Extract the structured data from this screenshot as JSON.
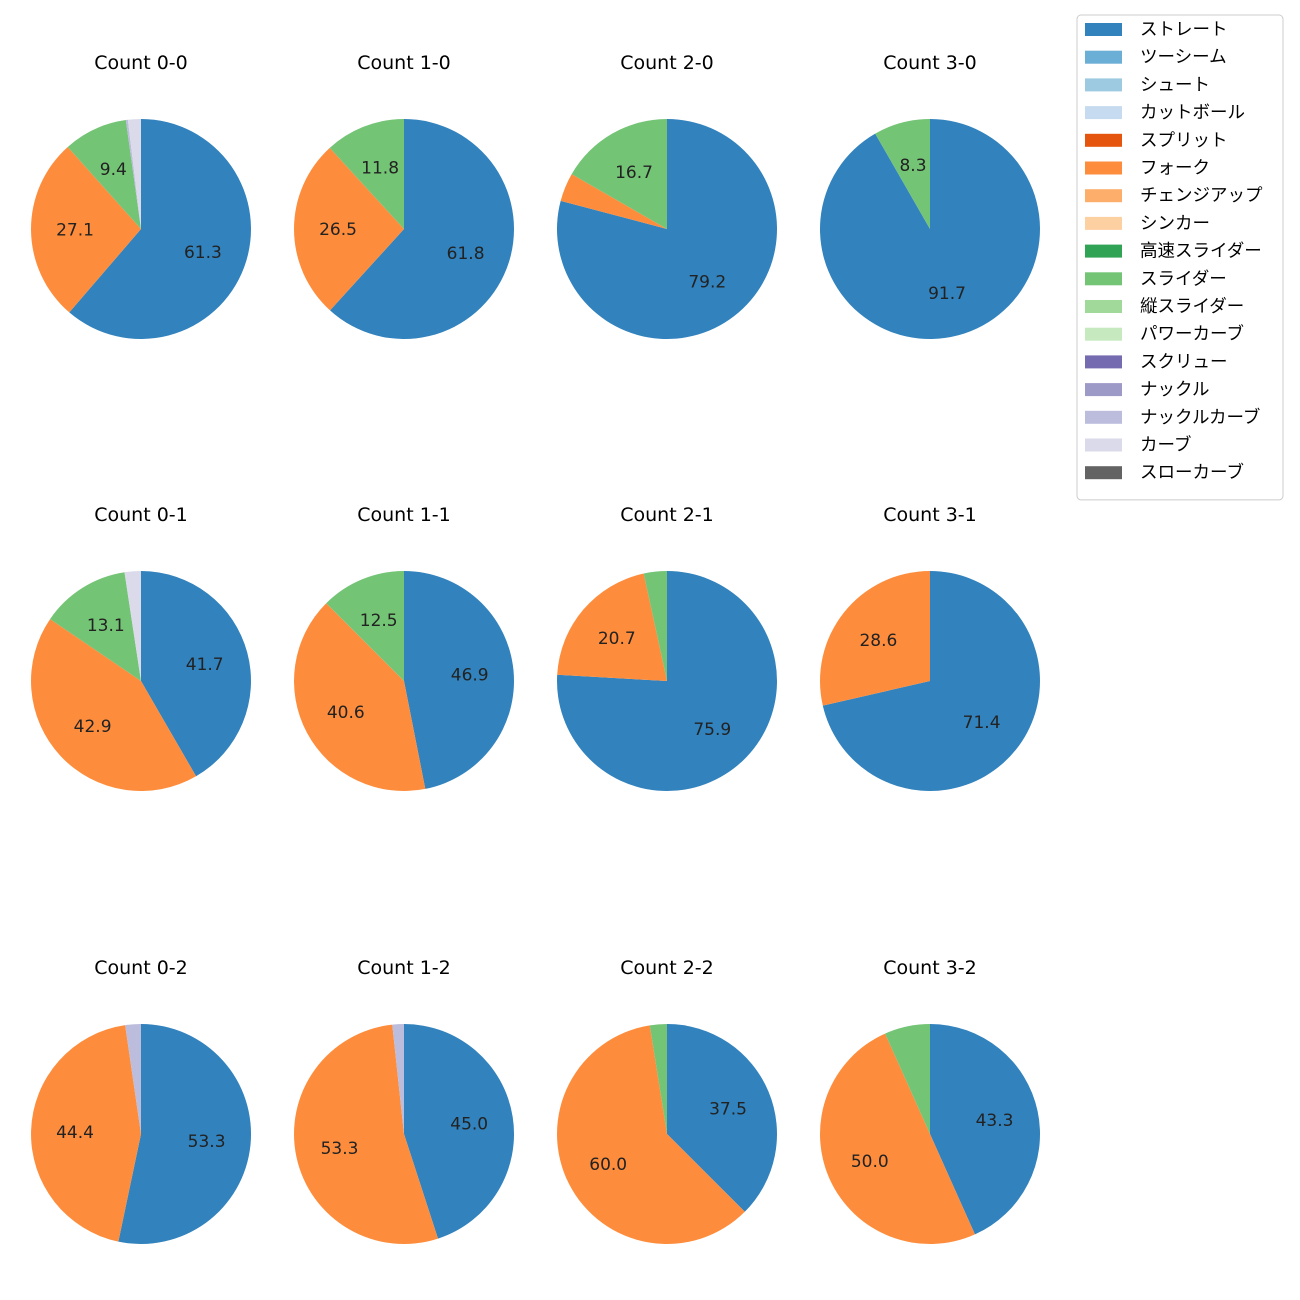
{
  "chart_data": {
    "type": "pie",
    "legend": {
      "placement": "top-right",
      "entries": [
        {
          "name": "ストレート",
          "color": "#3182bd"
        },
        {
          "name": "ツーシーム",
          "color": "#6baed6"
        },
        {
          "name": "シュート",
          "color": "#9ecae1"
        },
        {
          "name": "カットボール",
          "color": "#c6dbef"
        },
        {
          "name": "スプリット",
          "color": "#e6550d"
        },
        {
          "name": "フォーク",
          "color": "#fd8d3c"
        },
        {
          "name": "チェンジアップ",
          "color": "#fdae6b"
        },
        {
          "name": "シンカー",
          "color": "#fdd0a2"
        },
        {
          "name": "高速スライダー",
          "color": "#31a354"
        },
        {
          "name": "スライダー",
          "color": "#74c476"
        },
        {
          "name": "縦スライダー",
          "color": "#a1d99b"
        },
        {
          "name": "パワーカーブ",
          "color": "#c7e9c0"
        },
        {
          "name": "スクリュー",
          "color": "#756bb1"
        },
        {
          "name": "ナックル",
          "color": "#9e9ac8"
        },
        {
          "name": "ナックルカーブ",
          "color": "#bcbddc"
        },
        {
          "name": "カーブ",
          "color": "#dadaeb"
        },
        {
          "name": "スローカーブ",
          "color": "#636363"
        }
      ]
    },
    "pies": [
      {
        "title": "Count 0-0",
        "slices": [
          {
            "name": "ストレート",
            "value": 61.3,
            "label": "61.3"
          },
          {
            "name": "フォーク",
            "value": 27.1,
            "label": "27.1"
          },
          {
            "name": "スライダー",
            "value": 9.4,
            "label": "9.4"
          },
          {
            "name": "ナックルカーブ",
            "value": 0.3,
            "label": ""
          },
          {
            "name": "カーブ",
            "value": 1.9,
            "label": ""
          }
        ]
      },
      {
        "title": "Count 1-0",
        "slices": [
          {
            "name": "ストレート",
            "value": 61.8,
            "label": "61.8"
          },
          {
            "name": "フォーク",
            "value": 26.5,
            "label": "26.5"
          },
          {
            "name": "スライダー",
            "value": 11.8,
            "label": "11.8"
          }
        ]
      },
      {
        "title": "Count 2-0",
        "slices": [
          {
            "name": "ストレート",
            "value": 79.2,
            "label": "79.2"
          },
          {
            "name": "フォーク",
            "value": 4.2,
            "label": ""
          },
          {
            "name": "スライダー",
            "value": 16.7,
            "label": "16.7"
          }
        ]
      },
      {
        "title": "Count 3-0",
        "slices": [
          {
            "name": "ストレート",
            "value": 91.7,
            "label": "91.7"
          },
          {
            "name": "スライダー",
            "value": 8.3,
            "label": "8.3"
          }
        ]
      },
      {
        "title": "Count 0-1",
        "slices": [
          {
            "name": "ストレート",
            "value": 41.7,
            "label": "41.7"
          },
          {
            "name": "フォーク",
            "value": 42.9,
            "label": "42.9"
          },
          {
            "name": "スライダー",
            "value": 13.1,
            "label": "13.1"
          },
          {
            "name": "カーブ",
            "value": 2.4,
            "label": ""
          }
        ]
      },
      {
        "title": "Count 1-1",
        "slices": [
          {
            "name": "ストレート",
            "value": 46.9,
            "label": "46.9"
          },
          {
            "name": "フォーク",
            "value": 40.6,
            "label": "40.6"
          },
          {
            "name": "スライダー",
            "value": 12.5,
            "label": "12.5"
          }
        ]
      },
      {
        "title": "Count 2-1",
        "slices": [
          {
            "name": "ストレート",
            "value": 75.9,
            "label": "75.9"
          },
          {
            "name": "フォーク",
            "value": 20.7,
            "label": "20.7"
          },
          {
            "name": "スライダー",
            "value": 3.4,
            "label": ""
          }
        ]
      },
      {
        "title": "Count 3-1",
        "slices": [
          {
            "name": "ストレート",
            "value": 71.4,
            "label": "71.4"
          },
          {
            "name": "フォーク",
            "value": 28.6,
            "label": "28.6"
          }
        ]
      },
      {
        "title": "Count 0-2",
        "slices": [
          {
            "name": "ストレート",
            "value": 53.3,
            "label": "53.3"
          },
          {
            "name": "フォーク",
            "value": 44.4,
            "label": "44.4"
          },
          {
            "name": "ナックルカーブ",
            "value": 2.3,
            "label": ""
          }
        ]
      },
      {
        "title": "Count 1-2",
        "slices": [
          {
            "name": "ストレート",
            "value": 45.0,
            "label": "45.0"
          },
          {
            "name": "フォーク",
            "value": 53.3,
            "label": "53.3"
          },
          {
            "name": "ナックルカーブ",
            "value": 1.7,
            "label": ""
          }
        ]
      },
      {
        "title": "Count 2-2",
        "slices": [
          {
            "name": "ストレート",
            "value": 37.5,
            "label": "37.5"
          },
          {
            "name": "フォーク",
            "value": 60.0,
            "label": "60.0"
          },
          {
            "name": "スライダー",
            "value": 2.5,
            "label": ""
          }
        ]
      },
      {
        "title": "Count 3-2",
        "slices": [
          {
            "name": "ストレート",
            "value": 43.3,
            "label": "43.3"
          },
          {
            "name": "フォーク",
            "value": 50.0,
            "label": "50.0"
          },
          {
            "name": "スライダー",
            "value": 6.7,
            "label": ""
          }
        ]
      }
    ]
  }
}
